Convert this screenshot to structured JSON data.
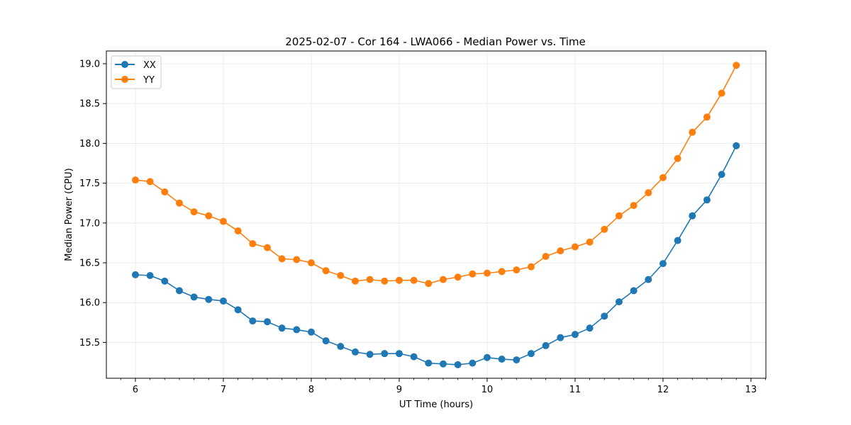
{
  "chart_data": {
    "type": "line",
    "title": "2025-02-07 - Cor 164 - LWA066 - Median Power vs. Time",
    "xlabel": "UT Time (hours)",
    "ylabel": "Median Power (CPU)",
    "xlim": [
      5.67,
      13.17
    ],
    "ylim": [
      15.05,
      19.16
    ],
    "xticks": [
      6,
      7,
      8,
      9,
      10,
      11,
      12,
      13
    ],
    "yticks": [
      15.5,
      16.0,
      16.5,
      17.0,
      17.5,
      18.0,
      18.5,
      19.0
    ],
    "grid": true,
    "legend_position": "top-left",
    "x": [
      6.0,
      6.1667,
      6.3333,
      6.5,
      6.6667,
      6.8333,
      7.0,
      7.1667,
      7.3333,
      7.5,
      7.6667,
      7.8333,
      8.0,
      8.1667,
      8.3333,
      8.5,
      8.6667,
      8.8333,
      9.0,
      9.1667,
      9.3333,
      9.5,
      9.6667,
      9.8333,
      10.0,
      10.1667,
      10.3333,
      10.5,
      10.6667,
      10.8333,
      11.0,
      11.1667,
      11.3333,
      11.5,
      11.6667,
      11.8333,
      12.0,
      12.1667,
      12.3333,
      12.5,
      12.6667,
      12.8333
    ],
    "series": [
      {
        "name": "XX",
        "color": "#1f77b4",
        "values": [
          16.35,
          16.34,
          16.27,
          16.15,
          16.07,
          16.04,
          16.02,
          15.91,
          15.77,
          15.76,
          15.68,
          15.66,
          15.63,
          15.52,
          15.45,
          15.38,
          15.35,
          15.36,
          15.36,
          15.32,
          15.24,
          15.23,
          15.22,
          15.24,
          15.31,
          15.29,
          15.28,
          15.36,
          15.46,
          15.56,
          15.6,
          15.68,
          15.83,
          16.01,
          16.15,
          16.29,
          16.49,
          16.78,
          17.09,
          17.29,
          17.61,
          17.97
        ]
      },
      {
        "name": "YY",
        "color": "#ff7f0e",
        "values": [
          17.54,
          17.52,
          17.39,
          17.25,
          17.14,
          17.09,
          17.02,
          16.9,
          16.74,
          16.69,
          16.55,
          16.54,
          16.5,
          16.4,
          16.34,
          16.27,
          16.29,
          16.27,
          16.28,
          16.28,
          16.24,
          16.29,
          16.32,
          16.36,
          16.37,
          16.39,
          16.41,
          16.45,
          16.58,
          16.65,
          16.7,
          16.76,
          16.92,
          17.09,
          17.22,
          17.38,
          17.57,
          17.81,
          18.14,
          18.33,
          18.63,
          18.98
        ]
      }
    ]
  }
}
